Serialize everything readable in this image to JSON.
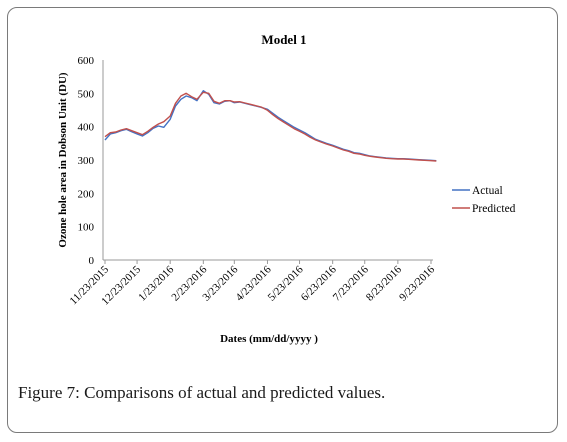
{
  "caption": {
    "figure_label": "Figure 7:",
    "text": "Comparisons of actual and predicted values."
  },
  "chart_data": {
    "type": "line",
    "title": "Model 1",
    "xlabel": "Dates (mm/dd/yyyy )",
    "ylabel": "Ozone  hole  area in Dobson Unit (DU)",
    "ylim": [
      0,
      600
    ],
    "yticks": [
      0,
      100,
      200,
      300,
      400,
      500,
      600
    ],
    "xticks": [
      "11/23/2015",
      "12/23/2015",
      "1/23/2016",
      "2/23/2016",
      "3/23/2016",
      "4/23/2016",
      "5/23/2016",
      "6/23/2016",
      "7/23/2016",
      "8/23/2016",
      "9/23/2016"
    ],
    "grid": false,
    "legend_position": "right",
    "colors": {
      "Actual": "#4472C4",
      "Predicted": "#C0504D"
    },
    "x": [
      "11/23/2015",
      "11/28/2015",
      "12/3/2015",
      "12/8/2015",
      "12/13/2015",
      "12/18/2015",
      "12/23/2015",
      "12/28/2015",
      "1/2/2016",
      "1/7/2016",
      "1/12/2016",
      "1/17/2016",
      "1/23/2016",
      "1/28/2016",
      "2/2/2016",
      "2/7/2016",
      "2/12/2016",
      "2/17/2016",
      "2/23/2016",
      "2/28/2016",
      "3/4/2016",
      "3/9/2016",
      "3/14/2016",
      "3/19/2016",
      "3/23/2016",
      "3/28/2016",
      "4/2/2016",
      "4/7/2016",
      "4/12/2016",
      "4/17/2016",
      "4/23/2016",
      "4/28/2016",
      "5/3/2016",
      "5/8/2016",
      "5/13/2016",
      "5/18/2016",
      "5/23/2016",
      "5/28/2016",
      "6/2/2016",
      "6/7/2016",
      "6/12/2016",
      "6/17/2016",
      "6/23/2016",
      "6/28/2016",
      "7/3/2016",
      "7/8/2016",
      "7/13/2016",
      "7/18/2016",
      "7/23/2016",
      "7/28/2016",
      "8/2/2016",
      "8/7/2016",
      "8/12/2016",
      "8/17/2016",
      "8/23/2016",
      "8/28/2016",
      "9/2/2016",
      "9/7/2016",
      "9/12/2016",
      "9/17/2016",
      "9/23/2016",
      "9/28/2016"
    ],
    "series": [
      {
        "name": "Actual",
        "values": [
          360,
          378,
          382,
          388,
          392,
          385,
          378,
          372,
          382,
          395,
          402,
          398,
          422,
          462,
          482,
          492,
          487,
          478,
          508,
          497,
          472,
          468,
          476,
          478,
          472,
          474,
          470,
          466,
          462,
          458,
          452,
          440,
          428,
          418,
          408,
          398,
          390,
          382,
          372,
          362,
          356,
          350,
          344,
          338,
          332,
          328,
          322,
          320,
          316,
          312,
          310,
          308,
          306,
          305,
          304,
          304,
          303,
          302,
          301,
          300,
          299,
          298
        ]
      },
      {
        "name": "Predicted",
        "values": [
          370,
          382,
          384,
          390,
          394,
          388,
          382,
          376,
          386,
          398,
          408,
          415,
          432,
          470,
          492,
          500,
          490,
          482,
          503,
          500,
          476,
          470,
          478,
          478,
          474,
          475,
          471,
          467,
          463,
          459,
          449,
          436,
          424,
          414,
          404,
          394,
          386,
          378,
          368,
          360,
          354,
          348,
          342,
          336,
          330,
          326,
          320,
          318,
          314,
          311,
          309,
          307,
          305,
          304,
          303,
          303,
          302,
          301,
          300,
          299,
          298,
          297
        ]
      }
    ]
  }
}
